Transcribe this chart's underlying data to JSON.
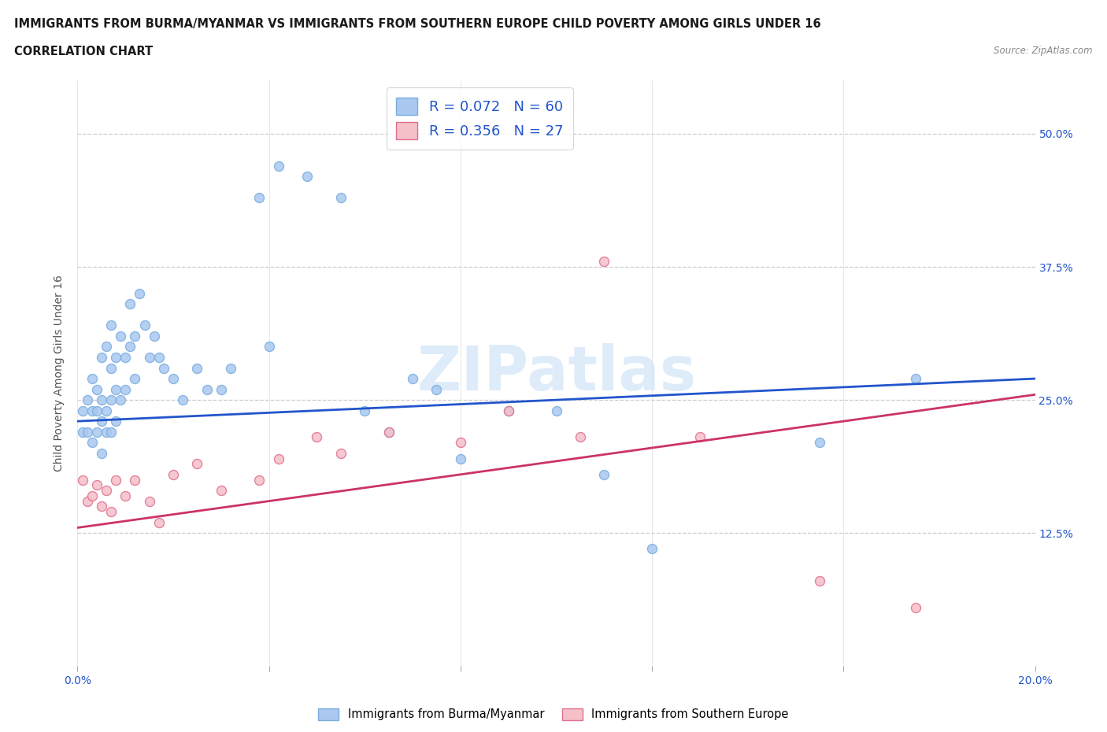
{
  "title_line1": "IMMIGRANTS FROM BURMA/MYANMAR VS IMMIGRANTS FROM SOUTHERN EUROPE CHILD POVERTY AMONG GIRLS UNDER 16",
  "title_line2": "CORRELATION CHART",
  "source_text": "Source: ZipAtlas.com",
  "ylabel": "Child Poverty Among Girls Under 16",
  "xlim": [
    0.0,
    0.2
  ],
  "ylim": [
    0.0,
    0.55
  ],
  "xticks": [
    0.0,
    0.04,
    0.08,
    0.12,
    0.16,
    0.2
  ],
  "xticklabels": [
    "0.0%",
    "",
    "",
    "",
    "",
    "20.0%"
  ],
  "ytick_positions": [
    0.0,
    0.125,
    0.25,
    0.375,
    0.5
  ],
  "yticklabels_right": [
    "",
    "12.5%",
    "25.0%",
    "37.5%",
    "50.0%"
  ],
  "blue_scatter_x": [
    0.001,
    0.001,
    0.002,
    0.002,
    0.003,
    0.003,
    0.003,
    0.004,
    0.004,
    0.004,
    0.005,
    0.005,
    0.005,
    0.005,
    0.006,
    0.006,
    0.006,
    0.007,
    0.007,
    0.007,
    0.007,
    0.008,
    0.008,
    0.008,
    0.009,
    0.009,
    0.01,
    0.01,
    0.011,
    0.011,
    0.012,
    0.012,
    0.013,
    0.014,
    0.015,
    0.016,
    0.017,
    0.018,
    0.02,
    0.022,
    0.025,
    0.027,
    0.03,
    0.032,
    0.038,
    0.04,
    0.042,
    0.048,
    0.055,
    0.06,
    0.065,
    0.07,
    0.075,
    0.08,
    0.09,
    0.1,
    0.11,
    0.12,
    0.155,
    0.175
  ],
  "blue_scatter_y": [
    0.22,
    0.24,
    0.22,
    0.25,
    0.21,
    0.24,
    0.27,
    0.22,
    0.24,
    0.26,
    0.2,
    0.23,
    0.25,
    0.29,
    0.22,
    0.24,
    0.3,
    0.22,
    0.25,
    0.28,
    0.32,
    0.23,
    0.26,
    0.29,
    0.25,
    0.31,
    0.26,
    0.29,
    0.3,
    0.34,
    0.27,
    0.31,
    0.35,
    0.32,
    0.29,
    0.31,
    0.29,
    0.28,
    0.27,
    0.25,
    0.28,
    0.26,
    0.26,
    0.28,
    0.44,
    0.3,
    0.47,
    0.46,
    0.44,
    0.24,
    0.22,
    0.27,
    0.26,
    0.195,
    0.24,
    0.24,
    0.18,
    0.11,
    0.21,
    0.27
  ],
  "pink_scatter_x": [
    0.001,
    0.002,
    0.003,
    0.004,
    0.005,
    0.006,
    0.007,
    0.008,
    0.01,
    0.012,
    0.015,
    0.017,
    0.02,
    0.025,
    0.03,
    0.038,
    0.042,
    0.05,
    0.055,
    0.065,
    0.08,
    0.09,
    0.105,
    0.11,
    0.13,
    0.155,
    0.175
  ],
  "pink_scatter_y": [
    0.175,
    0.155,
    0.16,
    0.17,
    0.15,
    0.165,
    0.145,
    0.175,
    0.16,
    0.175,
    0.155,
    0.135,
    0.18,
    0.19,
    0.165,
    0.175,
    0.195,
    0.215,
    0.2,
    0.22,
    0.21,
    0.24,
    0.215,
    0.38,
    0.215,
    0.08,
    0.055
  ],
  "blue_line_x": [
    0.0,
    0.2
  ],
  "blue_line_y": [
    0.23,
    0.27
  ],
  "pink_line_x": [
    0.0,
    0.2
  ],
  "pink_line_y": [
    0.13,
    0.255
  ]
}
